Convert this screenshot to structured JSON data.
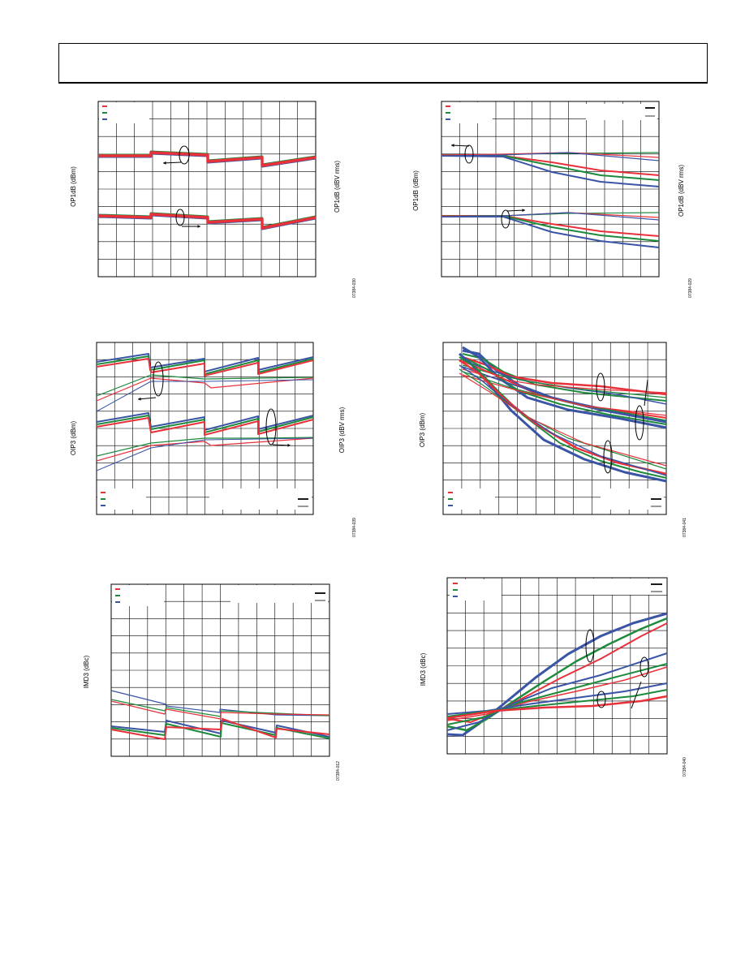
{
  "colors": {
    "red": "#e8313a",
    "green": "#1e8a3c",
    "blue": "#3a54a6",
    "grid": "#000000"
  },
  "charts": [
    {
      "id": "chart-1",
      "type": "line",
      "ylabel": "OP1dB (dBm)",
      "ylabel_right": "OP1dB (dBV rms)",
      "figure_id": "07384-030",
      "legend": {
        "colors": [
          "red",
          "green",
          "blue"
        ],
        "position": "top-left"
      }
    },
    {
      "id": "chart-2",
      "type": "line",
      "ylabel": "OP1dB (dBm)",
      "ylabel_right": "OP1dB (dBV rms)",
      "figure_id": "07384-029",
      "legend": {
        "colors": [
          "red",
          "green",
          "blue"
        ],
        "position": "top-left"
      }
    },
    {
      "id": "chart-3",
      "type": "line",
      "ylabel": "OIP3 (dBm)",
      "ylabel_right": "OIP3 (dBV rms)",
      "figure_id": "07384-039",
      "legend": {
        "colors": [
          "red",
          "green",
          "blue"
        ],
        "position": "bottom-left"
      }
    },
    {
      "id": "chart-4",
      "type": "line",
      "ylabel": "OIP3 (dBm)",
      "figure_id": "07384-041",
      "legend": {
        "colors": [
          "red",
          "green",
          "blue"
        ],
        "position": "bottom-left"
      }
    },
    {
      "id": "chart-5",
      "type": "line",
      "ylabel": "IMD3 (dBc)",
      "figure_id": "07384-012",
      "legend": {
        "colors": [
          "red",
          "green",
          "blue"
        ],
        "position": "top-left"
      }
    },
    {
      "id": "chart-6",
      "type": "line",
      "ylabel": "IMD3 (dBc)",
      "figure_id": "07384-040",
      "legend": {
        "colors": [
          "red",
          "green",
          "blue"
        ],
        "position": "top-left"
      }
    }
  ]
}
